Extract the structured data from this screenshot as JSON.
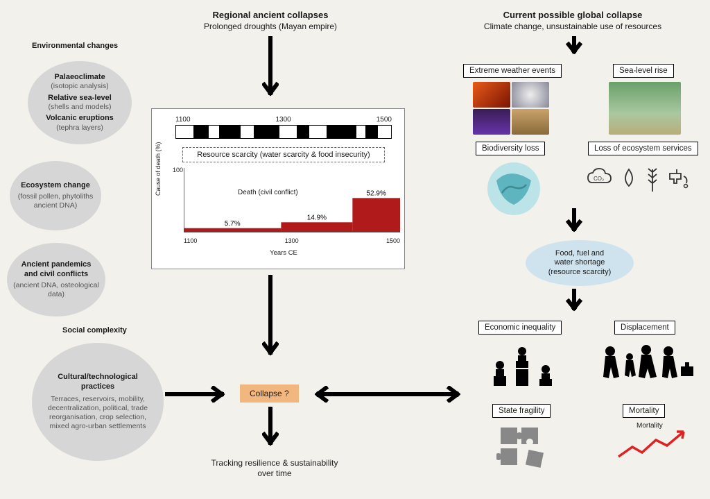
{
  "left": {
    "env_heading": "Environmental changes",
    "bubble1": {
      "l1b": "Palaeoclimate",
      "l1s": "(isotopic analysis)",
      "l2b": "Relative sea-level",
      "l2s": "(shells and models)",
      "l3b": "Volcanic eruptions",
      "l3s": "(tephra layers)"
    },
    "bubble2": {
      "t": "Ecosystem change",
      "s": "(fossil pollen, phytoliths ancient DNA)"
    },
    "bubble3": {
      "t": "Ancient pandemics and civil conflicts",
      "s": "(ancient DNA, osteological data)"
    },
    "social_heading": "Social complexity",
    "bubble4": {
      "t": "Cultural/technological practices",
      "s": "Terraces, reservoirs, mobility, decentralization, political, trade reorganisation, crop selection, mixed agro-urban settlements"
    }
  },
  "center": {
    "header_bold": "Regional ancient collapses",
    "header_sub": "Prolonged droughts (Mayan empire)",
    "timeline": {
      "ticks": [
        "1100",
        "1300",
        "1500"
      ],
      "segments": [
        {
          "c": "#fff",
          "w": 0.08
        },
        {
          "c": "#000",
          "w": 0.07
        },
        {
          "c": "#fff",
          "w": 0.05
        },
        {
          "c": "#000",
          "w": 0.1
        },
        {
          "c": "#fff",
          "w": 0.06
        },
        {
          "c": "#000",
          "w": 0.12
        },
        {
          "c": "#fff",
          "w": 0.08
        },
        {
          "c": "#000",
          "w": 0.06
        },
        {
          "c": "#fff",
          "w": 0.08
        },
        {
          "c": "#000",
          "w": 0.14
        },
        {
          "c": "#fff",
          "w": 0.04
        },
        {
          "c": "#000",
          "w": 0.06
        },
        {
          "c": "#fff",
          "w": 0.06
        }
      ]
    },
    "resource_label": "Resource scarcity (water scarcity & food insecurity)",
    "chart": {
      "type": "bar",
      "ylabel": "Cause of death (%)",
      "xlabel": "Years CE",
      "series_label": "Death (civil conflict)",
      "ylim": [
        0,
        100
      ],
      "ytick_top": "100",
      "xticks": [
        "1100",
        "1300",
        "1500"
      ],
      "bars": [
        {
          "label": "5.7%",
          "value": 5.7,
          "x0": 0.0,
          "x1": 0.45
        },
        {
          "label": "14.9%",
          "value": 14.9,
          "x0": 0.45,
          "x1": 0.78
        },
        {
          "label": "52.9%",
          "value": 52.9,
          "x0": 0.78,
          "x1": 1.0
        }
      ],
      "bar_color": "#b11a1a",
      "axis_color": "#000"
    },
    "collapse_label": "Collapse ?",
    "tracking": "Tracking resilience & sustainability over time"
  },
  "right": {
    "header_bold": "Current possible global collapse",
    "header_sub": "Climate change, unsustainable use of resources",
    "box_extreme": "Extreme weather events",
    "box_sea": "Sea-level rise",
    "box_bio": "Biodiversity loss",
    "box_eco": "Loss of ecosystem services",
    "ellipse": {
      "l1": "Food, fuel and",
      "l2": "water shortage",
      "l3": "(resource scarcity)"
    },
    "box_econ": "Economic inequality",
    "box_disp": "Displacement",
    "box_state": "State fragility",
    "box_mort": "Mortality",
    "mort_small": "Mortality",
    "photo_colors": {
      "fire": "linear-gradient(135deg,#e85a1a,#7a1402)",
      "hurricane": "radial-gradient(circle,#eee,#889)",
      "lightning": "linear-gradient(#3a1d55,#6633aa)",
      "drought": "linear-gradient(#c9a36a,#8a6a3a)",
      "flood": "linear-gradient(#6aa06a,#a9c8a0 60%,#b9ad7a)"
    },
    "globe_color": "#5fb5bf",
    "arrow_red": "#d22"
  },
  "colors": {
    "bg": "#f2f1ec",
    "bubble": "#d6d6d6",
    "collapse": "#f2b77e",
    "ellipse": "#cfe3ef"
  }
}
